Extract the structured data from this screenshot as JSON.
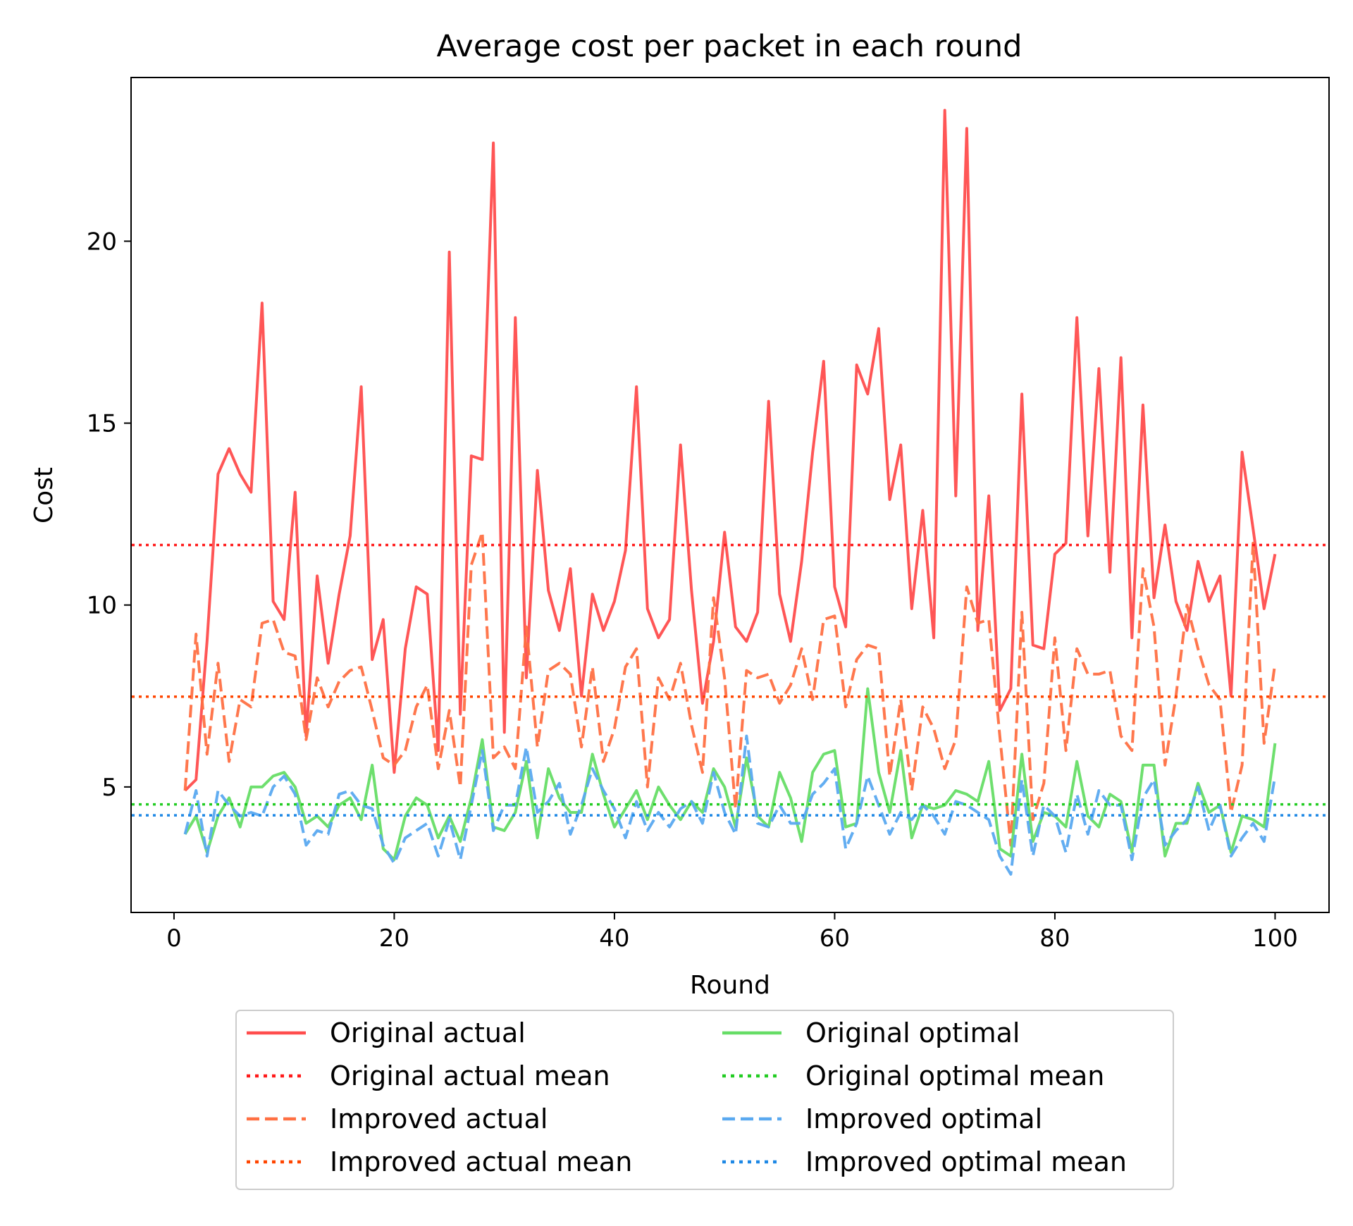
{
  "chart_data": {
    "type": "line",
    "title": "Average cost per packet in each round",
    "xlabel": "Round",
    "ylabel": "Cost",
    "xlim": [
      -3.9,
      104.9
    ],
    "ylim": [
      1.55,
      24.5
    ],
    "xticks": [
      0,
      20,
      40,
      60,
      80,
      100
    ],
    "yticks": [
      5,
      10,
      15,
      20
    ],
    "grid": false,
    "legend_position": "below plot, 2 columns",
    "x": [
      1,
      2,
      3,
      4,
      5,
      6,
      7,
      8,
      9,
      10,
      11,
      12,
      13,
      14,
      15,
      16,
      17,
      18,
      19,
      20,
      21,
      22,
      23,
      24,
      25,
      26,
      27,
      28,
      29,
      30,
      31,
      32,
      33,
      34,
      35,
      36,
      37,
      38,
      39,
      40,
      41,
      42,
      43,
      44,
      45,
      46,
      47,
      48,
      49,
      50,
      51,
      52,
      53,
      54,
      55,
      56,
      57,
      58,
      59,
      60,
      61,
      62,
      63,
      64,
      65,
      66,
      67,
      68,
      69,
      70,
      71,
      72,
      73,
      74,
      75,
      76,
      77,
      78,
      79,
      80,
      81,
      82,
      83,
      84,
      85,
      86,
      87,
      88,
      89,
      90,
      91,
      92,
      93,
      94,
      95,
      96,
      97,
      98,
      99,
      100
    ],
    "series": [
      {
        "name": "Original actual",
        "color": "#ff4d4d",
        "style": "solid",
        "values": [
          4.9,
          5.2,
          9.0,
          13.6,
          14.3,
          13.6,
          13.1,
          18.3,
          10.1,
          9.6,
          13.1,
          6.4,
          10.8,
          8.4,
          10.3,
          11.9,
          16.0,
          8.5,
          9.6,
          5.4,
          8.8,
          10.5,
          10.3,
          6.0,
          19.7,
          7.0,
          14.1,
          14.0,
          22.7,
          6.5,
          17.9,
          8.0,
          13.7,
          10.4,
          9.3,
          11.0,
          7.5,
          10.3,
          9.3,
          10.1,
          11.5,
          16.0,
          9.9,
          9.1,
          9.6,
          14.4,
          10.4,
          7.3,
          9.0,
          12.0,
          9.4,
          9.0,
          9.8,
          15.6,
          10.3,
          9.0,
          11.2,
          14.2,
          16.7,
          10.5,
          9.4,
          16.6,
          15.8,
          17.6,
          12.9,
          14.4,
          9.9,
          12.6,
          9.1,
          23.6,
          13.0,
          23.1,
          9.3,
          13.0,
          7.1,
          7.7,
          15.8,
          8.9,
          8.8,
          11.4,
          11.7,
          17.9,
          11.9,
          16.5,
          10.9,
          16.8,
          9.1,
          15.5,
          10.2,
          12.2,
          10.1,
          9.3,
          11.2,
          10.1,
          10.8,
          7.5,
          14.2,
          12.1,
          9.9,
          11.4
        ]
      },
      {
        "name": "Original actual mean",
        "color": "#ff1a1a",
        "style": "dotted",
        "mean": 11.65
      },
      {
        "name": "Improved actual",
        "color": "#ff7043",
        "style": "dashed",
        "values": [
          4.9,
          9.2,
          5.9,
          8.4,
          5.7,
          7.4,
          7.2,
          9.5,
          9.6,
          8.7,
          8.6,
          6.3,
          8.0,
          7.2,
          7.9,
          8.2,
          8.3,
          7.1,
          5.8,
          5.6,
          6.0,
          7.2,
          7.8,
          5.5,
          7.1,
          5.0,
          11.1,
          12.0,
          5.8,
          6.1,
          5.5,
          9.4,
          6.1,
          8.2,
          8.4,
          8.1,
          6.1,
          8.3,
          5.7,
          6.6,
          8.3,
          8.8,
          5.0,
          8.0,
          7.4,
          8.4,
          6.7,
          5.4,
          10.2,
          8.0,
          4.4,
          8.2,
          8.0,
          8.1,
          7.3,
          7.8,
          8.8,
          7.4,
          9.6,
          9.7,
          7.2,
          8.5,
          8.9,
          8.8,
          5.3,
          7.4,
          4.9,
          7.2,
          6.6,
          5.5,
          6.3,
          10.5,
          9.5,
          9.6,
          6.4,
          3.4,
          9.8,
          4.1,
          5.1,
          9.1,
          6.0,
          8.8,
          8.1,
          8.1,
          8.2,
          6.4,
          6.0,
          11.0,
          9.4,
          5.6,
          7.5,
          10.0,
          8.8,
          7.8,
          7.4,
          4.3,
          5.6,
          11.7,
          6.2,
          8.4
        ]
      },
      {
        "name": "Improved actual mean",
        "color": "#ff4500",
        "style": "dotted",
        "mean": 7.48
      },
      {
        "name": "Original optimal",
        "color": "#66dd66",
        "style": "solid",
        "values": [
          3.7,
          4.2,
          3.2,
          4.2,
          4.7,
          3.9,
          5.0,
          5.0,
          5.3,
          5.4,
          5.0,
          4.0,
          4.2,
          3.9,
          4.5,
          4.7,
          4.1,
          5.6,
          3.3,
          3.0,
          4.2,
          4.7,
          4.5,
          3.6,
          4.2,
          3.5,
          4.7,
          6.3,
          3.9,
          3.8,
          4.3,
          5.7,
          3.6,
          5.5,
          4.7,
          4.3,
          4.3,
          5.9,
          4.8,
          3.9,
          4.4,
          4.9,
          4.1,
          5.0,
          4.5,
          4.1,
          4.6,
          4.3,
          5.5,
          5.0,
          3.9,
          5.8,
          4.2,
          3.9,
          5.4,
          4.7,
          3.5,
          5.4,
          5.9,
          6.0,
          3.9,
          4.0,
          7.7,
          5.4,
          4.3,
          6.0,
          3.6,
          4.5,
          4.4,
          4.5,
          4.9,
          4.8,
          4.6,
          5.7,
          3.3,
          3.1,
          5.9,
          3.5,
          4.3,
          4.2,
          3.9,
          5.7,
          4.2,
          3.9,
          4.8,
          4.6,
          3.2,
          5.6,
          5.6,
          3.1,
          4.0,
          4.0,
          5.1,
          4.3,
          4.5,
          3.2,
          4.2,
          4.1,
          3.9,
          6.2
        ]
      },
      {
        "name": "Original optimal mean",
        "color": "#22cc22",
        "style": "dotted",
        "mean": 4.52
      },
      {
        "name": "Improved optimal",
        "color": "#5aa9f0",
        "style": "dashed",
        "values": [
          3.7,
          4.9,
          3.1,
          4.9,
          4.5,
          4.2,
          4.3,
          4.2,
          5.0,
          5.3,
          4.8,
          3.4,
          3.8,
          3.7,
          4.8,
          4.9,
          4.5,
          4.4,
          3.4,
          2.9,
          3.6,
          3.8,
          4.0,
          3.1,
          4.1,
          3.0,
          4.5,
          6.0,
          3.8,
          4.5,
          4.5,
          6.1,
          4.3,
          4.6,
          5.1,
          3.7,
          4.5,
          5.5,
          4.9,
          4.4,
          3.6,
          4.6,
          3.8,
          4.3,
          3.9,
          4.4,
          4.6,
          4.0,
          5.4,
          4.3,
          3.7,
          6.4,
          4.0,
          3.9,
          4.5,
          4.0,
          4.0,
          4.8,
          5.1,
          5.5,
          3.3,
          4.0,
          5.3,
          4.5,
          3.7,
          4.3,
          4.1,
          4.5,
          4.2,
          3.7,
          4.6,
          4.5,
          4.3,
          4.1,
          3.1,
          2.6,
          5.2,
          3.1,
          4.5,
          4.2,
          3.2,
          4.8,
          3.7,
          4.9,
          4.5,
          4.5,
          3.0,
          4.7,
          5.2,
          3.4,
          3.8,
          4.1,
          5.0,
          3.8,
          4.5,
          3.1,
          3.6,
          4.0,
          3.5,
          5.3
        ]
      },
      {
        "name": "Improved optimal mean",
        "color": "#1e88e5",
        "style": "dotted",
        "mean": 4.22
      }
    ]
  }
}
